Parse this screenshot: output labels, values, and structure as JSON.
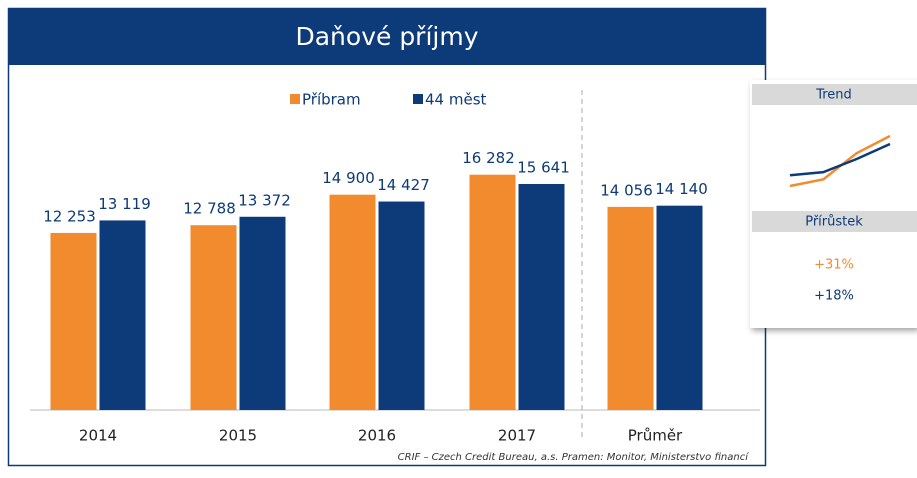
{
  "chart_data": {
    "type": "bar",
    "title": "Daňové příjmy",
    "categories": [
      "2014",
      "2015",
      "2016",
      "2017",
      "Průměr"
    ],
    "series": [
      {
        "name": "Příbram",
        "color": "#f28a2e",
        "values": [
          12253,
          12788,
          14900,
          16282,
          14056
        ],
        "value_labels": [
          "12 253",
          "12 788",
          "14 900",
          "16 282",
          "14 056"
        ]
      },
      {
        "name": "44 měst",
        "color": "#0d3a78",
        "values": [
          13119,
          13372,
          14427,
          15641,
          14140
        ],
        "value_labels": [
          "13 119",
          "13 372",
          "14 427",
          "15 641",
          "14 140"
        ]
      }
    ],
    "ylim": [
      0,
      20000
    ],
    "source": "CRIF – Czech Credit Bureau, a.s.    Pramen: Monitor, Ministerstvo financí"
  },
  "panel": {
    "trend_title": "Trend",
    "growth_title": "Přírůstek",
    "growth": [
      "+31%",
      "+18%"
    ]
  }
}
